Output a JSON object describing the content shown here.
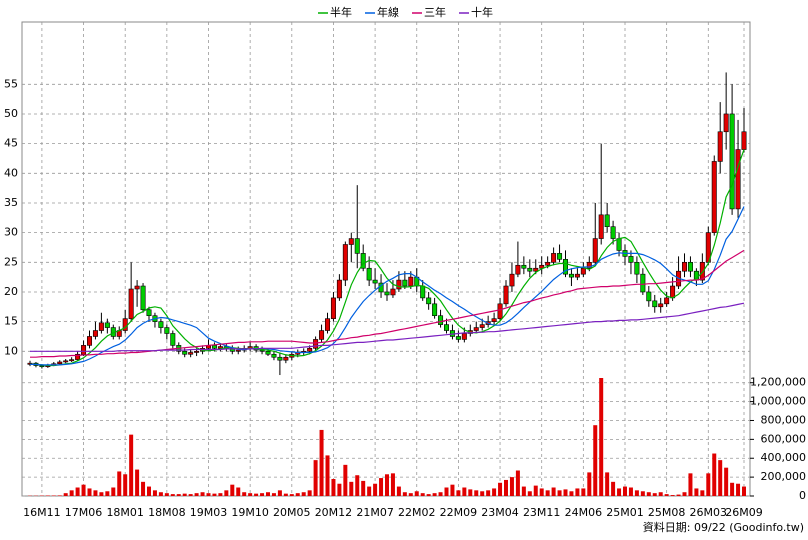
{
  "chart_data": {
    "type": "candlestick",
    "categories": [
      null,
      null,
      "16M11",
      null,
      null,
      null,
      null,
      null,
      null,
      "17M06",
      null,
      null,
      null,
      null,
      null,
      null,
      "18M01",
      null,
      null,
      null,
      null,
      null,
      null,
      "18M08",
      null,
      null,
      null,
      null,
      null,
      null,
      "19M03",
      null,
      null,
      null,
      null,
      null,
      null,
      "19M10",
      null,
      null,
      null,
      null,
      null,
      null,
      "20M05",
      null,
      null,
      null,
      null,
      null,
      null,
      "20M12",
      null,
      null,
      null,
      null,
      null,
      null,
      "21M07",
      null,
      null,
      null,
      null,
      null,
      null,
      "22M02",
      null,
      null,
      null,
      null,
      null,
      null,
      "22M09",
      null,
      null,
      null,
      null,
      null,
      null,
      "23M04",
      null,
      null,
      null,
      null,
      null,
      null,
      "23M11",
      null,
      null,
      null,
      null,
      null,
      null,
      "24M06",
      null,
      null,
      null,
      null,
      null,
      null,
      "25M01",
      null,
      null,
      null,
      null,
      null,
      null,
      "25M08",
      null,
      null,
      null,
      null,
      null,
      null,
      "26M03",
      null,
      null,
      null,
      null,
      null,
      "26M09"
    ],
    "open": [
      7.8,
      8.0,
      7.6,
      7.4,
      7.6,
      7.9,
      8.2,
      8.4,
      8.6,
      9.5,
      11.0,
      12.5,
      13.5,
      14.8,
      14.0,
      12.5,
      13.5,
      15.5,
      20.5,
      21.0,
      17.0,
      16.0,
      15.0,
      14.0,
      13.0,
      11.0,
      10.0,
      9.5,
      9.8,
      10.0,
      10.5,
      11.0,
      10.5,
      10.8,
      10.5,
      10.0,
      10.2,
      10.5,
      10.8,
      10.2,
      10.0,
      9.5,
      9.0,
      8.5,
      9.0,
      9.5,
      9.8,
      10.0,
      10.5,
      12.0,
      13.5,
      15.5,
      19.0,
      22.0,
      28.0,
      29.0,
      26.5,
      24.0,
      22.0,
      21.5,
      20.0,
      19.5,
      20.5,
      22.0,
      21.0,
      22.5,
      21.0,
      19.0,
      18.0,
      16.0,
      14.5,
      13.5,
      12.5,
      12.0,
      13.0,
      13.5,
      14.0,
      14.5,
      15.0,
      15.5,
      18.0,
      21.0,
      23.0,
      24.5,
      24.0,
      23.5,
      24.0,
      24.5,
      25.0,
      26.5,
      25.5,
      23.0,
      22.5,
      23.0,
      24.0,
      25.0,
      29.0,
      33.0,
      31.0,
      29.0,
      27.0,
      26.0,
      25.0,
      23.0,
      20.0,
      18.5,
      17.5,
      18.0,
      19.0,
      21.0,
      23.5,
      25.0,
      23.5,
      22.0,
      25.0,
      30.0,
      42.0,
      47.0,
      50.0,
      34.0,
      44.0
    ],
    "high": [
      8.4,
      8.2,
      7.8,
      7.9,
      8.2,
      8.5,
      8.7,
      9.0,
      10.0,
      11.8,
      13.5,
      15.0,
      16.5,
      15.5,
      14.5,
      14.2,
      17.0,
      25.0,
      22.0,
      21.5,
      17.5,
      16.5,
      15.5,
      14.5,
      13.5,
      11.5,
      10.5,
      10.3,
      10.5,
      11.0,
      12.0,
      11.5,
      11.3,
      11.2,
      11.0,
      10.8,
      11.0,
      11.5,
      11.2,
      10.8,
      10.5,
      10.0,
      9.8,
      9.5,
      10.0,
      10.3,
      10.5,
      11.0,
      12.5,
      14.5,
      16.5,
      20.0,
      23.0,
      28.5,
      30.0,
      38.0,
      28.0,
      26.0,
      24.0,
      23.0,
      21.5,
      22.0,
      23.5,
      23.5,
      23.5,
      24.0,
      22.0,
      20.0,
      19.0,
      17.0,
      15.5,
      14.5,
      13.5,
      14.0,
      14.5,
      15.0,
      15.5,
      16.0,
      16.5,
      19.0,
      22.0,
      25.0,
      28.5,
      26.0,
      25.5,
      25.5,
      26.0,
      26.0,
      27.5,
      28.0,
      27.0,
      24.0,
      24.0,
      25.0,
      26.0,
      35.0,
      45.0,
      35.0,
      32.0,
      30.0,
      28.0,
      27.0,
      26.0,
      24.0,
      21.0,
      19.5,
      19.0,
      20.0,
      22.5,
      26.0,
      26.5,
      26.0,
      24.0,
      26.5,
      31.0,
      43.0,
      52.0,
      57.0,
      55.0,
      49.0,
      51.0
    ],
    "low": [
      7.5,
      7.3,
      7.1,
      7.2,
      7.5,
      7.7,
      8.0,
      8.2,
      8.4,
      9.2,
      10.5,
      12.0,
      13.0,
      13.0,
      12.0,
      12.0,
      13.0,
      15.0,
      17.5,
      16.5,
      15.0,
      14.0,
      13.0,
      12.0,
      10.5,
      9.5,
      9.0,
      9.0,
      9.2,
      9.5,
      10.0,
      10.0,
      10.0,
      10.0,
      9.5,
      9.5,
      9.8,
      10.0,
      9.8,
      9.5,
      9.2,
      8.5,
      6.0,
      8.0,
      8.5,
      9.0,
      9.3,
      9.5,
      10.0,
      11.5,
      13.0,
      15.0,
      18.5,
      21.0,
      25.0,
      24.0,
      23.5,
      21.0,
      20.5,
      19.0,
      18.5,
      19.0,
      20.0,
      20.5,
      20.5,
      20.0,
      18.5,
      17.0,
      15.5,
      14.0,
      13.0,
      12.0,
      11.5,
      11.5,
      12.5,
      13.0,
      13.5,
      14.0,
      14.5,
      15.0,
      17.5,
      20.0,
      22.5,
      23.0,
      22.5,
      23.0,
      23.0,
      24.0,
      24.5,
      25.0,
      22.5,
      21.0,
      22.0,
      22.5,
      23.5,
      24.5,
      28.0,
      30.0,
      28.0,
      26.0,
      24.5,
      23.0,
      21.5,
      19.5,
      17.5,
      16.5,
      16.5,
      17.5,
      18.5,
      20.5,
      22.5,
      22.5,
      21.0,
      21.5,
      24.5,
      29.5,
      40.0,
      44.0,
      33.0,
      32.5,
      43.5
    ],
    "close": [
      8.0,
      7.6,
      7.4,
      7.6,
      7.9,
      8.2,
      8.4,
      8.6,
      9.5,
      11.0,
      12.5,
      13.5,
      14.8,
      14.0,
      12.5,
      13.5,
      15.5,
      20.5,
      21.0,
      17.0,
      16.0,
      15.0,
      14.0,
      13.0,
      11.0,
      10.0,
      9.5,
      9.8,
      10.0,
      10.5,
      11.0,
      10.5,
      10.8,
      10.5,
      10.0,
      10.2,
      10.5,
      10.8,
      10.2,
      10.0,
      9.5,
      9.0,
      8.5,
      9.0,
      9.5,
      9.8,
      10.0,
      10.5,
      12.0,
      13.5,
      15.5,
      19.0,
      22.0,
      28.0,
      29.0,
      26.5,
      24.0,
      22.0,
      21.5,
      20.0,
      19.5,
      20.5,
      22.0,
      21.0,
      22.5,
      21.0,
      19.0,
      18.0,
      16.0,
      14.5,
      13.5,
      12.5,
      12.0,
      13.0,
      13.5,
      14.0,
      14.5,
      15.0,
      15.5,
      18.0,
      21.0,
      23.0,
      24.5,
      24.0,
      23.5,
      24.0,
      24.5,
      25.0,
      26.5,
      25.5,
      23.0,
      22.5,
      23.0,
      24.0,
      25.0,
      29.0,
      33.0,
      31.0,
      29.0,
      27.0,
      26.0,
      25.0,
      23.0,
      20.0,
      18.5,
      17.5,
      18.0,
      19.0,
      21.0,
      23.5,
      25.0,
      23.5,
      22.0,
      25.0,
      30.0,
      42.0,
      47.0,
      50.0,
      34.0,
      44.0,
      47.0
    ],
    "up_color": "#e00000",
    "down_color": "#00cc00",
    "series": [
      {
        "name": "半年",
        "color": "#00b000",
        "values": [
          7.8,
          7.8,
          7.7,
          7.6,
          7.6,
          7.7,
          7.9,
          8.0,
          8.4,
          8.9,
          9.7,
          10.6,
          11.7,
          12.6,
          13.1,
          13.5,
          14.0,
          15.1,
          16.2,
          16.7,
          17.3,
          17.5,
          17.3,
          16.0,
          14.3,
          13.2,
          12.1,
          11.2,
          10.6,
          10.1,
          10.1,
          10.2,
          10.4,
          10.6,
          10.6,
          10.5,
          10.4,
          10.5,
          10.4,
          10.3,
          10.2,
          10.0,
          9.7,
          9.4,
          9.3,
          9.2,
          9.3,
          9.6,
          10.1,
          10.9,
          11.9,
          13.4,
          15.4,
          18.3,
          21.2,
          23.3,
          24.8,
          25.3,
          25.2,
          23.8,
          22.3,
          21.3,
          20.9,
          20.8,
          20.9,
          21.1,
          21.0,
          20.6,
          19.6,
          18.5,
          17.0,
          15.6,
          14.4,
          13.6,
          13.2,
          13.1,
          13.3,
          13.7,
          14.3,
          15.1,
          16.3,
          17.8,
          19.5,
          21.0,
          22.3,
          23.3,
          23.9,
          24.3,
          24.6,
          24.8,
          24.8,
          24.5,
          24.3,
          24.1,
          23.8,
          24.4,
          26.1,
          27.5,
          28.5,
          29.0,
          29.2,
          28.5,
          26.8,
          25.0,
          23.3,
          21.7,
          20.3,
          19.3,
          19.0,
          19.6,
          20.7,
          21.7,
          22.3,
          23.3,
          24.8,
          27.9,
          31.6,
          36.0,
          38.0,
          41.2,
          44.0
        ]
      },
      {
        "name": "年線",
        "color": "#0060e0",
        "values": [
          7.8,
          7.8,
          7.7,
          7.7,
          7.7,
          7.7,
          7.8,
          7.9,
          8.1,
          8.3,
          8.7,
          9.2,
          9.8,
          10.3,
          10.8,
          11.2,
          11.9,
          12.9,
          14.0,
          14.7,
          15.2,
          15.5,
          15.7,
          15.6,
          15.3,
          15.0,
          14.7,
          14.4,
          14.0,
          13.1,
          12.2,
          11.7,
          11.3,
          10.9,
          10.6,
          10.3,
          10.3,
          10.4,
          10.4,
          10.5,
          10.4,
          10.3,
          10.1,
          10.0,
          9.9,
          9.8,
          9.8,
          9.8,
          9.9,
          10.2,
          10.6,
          11.3,
          12.4,
          14.0,
          15.7,
          17.1,
          18.4,
          19.4,
          20.3,
          21.1,
          21.8,
          22.3,
          22.9,
          23.1,
          23.1,
          22.5,
          21.7,
          21.0,
          20.3,
          19.7,
          19.0,
          18.4,
          17.7,
          17.1,
          16.4,
          15.8,
          15.2,
          14.7,
          14.4,
          14.4,
          14.8,
          15.5,
          16.4,
          17.4,
          18.3,
          19.2,
          20.1,
          21.1,
          22.1,
          22.9,
          23.6,
          23.9,
          24.1,
          24.2,
          24.2,
          24.6,
          25.5,
          26.0,
          26.4,
          26.6,
          26.5,
          26.5,
          26.5,
          26.3,
          25.9,
          25.4,
          24.8,
          23.9,
          22.9,
          22.3,
          22.0,
          21.7,
          21.3,
          21.3,
          21.9,
          23.8,
          26.2,
          28.9,
          30.2,
          32.3,
          34.4
        ]
      },
      {
        "name": "三年",
        "color": "#d0006a",
        "values": [
          9.0,
          9.0,
          9.1,
          9.1,
          9.1,
          9.2,
          9.2,
          9.3,
          9.3,
          9.4,
          9.4,
          9.5,
          9.5,
          9.6,
          9.6,
          9.7,
          9.7,
          9.8,
          9.8,
          9.9,
          10.0,
          10.1,
          10.2,
          10.3,
          10.4,
          10.5,
          10.6,
          10.7,
          10.8,
          10.9,
          11.0,
          11.1,
          11.2,
          11.3,
          11.4,
          11.5,
          11.5,
          11.6,
          11.6,
          11.6,
          11.7,
          11.7,
          11.7,
          11.7,
          11.7,
          11.6,
          11.5,
          11.4,
          11.4,
          11.5,
          11.6,
          11.8,
          12.0,
          12.1,
          12.3,
          12.4,
          12.6,
          12.7,
          12.9,
          13.0,
          13.2,
          13.4,
          13.6,
          13.8,
          14.0,
          14.2,
          14.4,
          14.6,
          14.8,
          15.0,
          15.2,
          15.4,
          15.6,
          15.8,
          16.0,
          16.2,
          16.4,
          16.6,
          16.8,
          17.0,
          17.3,
          17.6,
          17.9,
          18.2,
          18.4,
          18.7,
          19.0,
          19.2,
          19.5,
          19.7,
          20.0,
          20.2,
          20.5,
          20.6,
          20.7,
          20.8,
          20.9,
          20.9,
          21.0,
          21.0,
          21.1,
          21.2,
          21.3,
          21.3,
          21.4,
          21.4,
          21.5,
          21.6,
          21.7,
          21.8,
          21.9,
          22.0,
          22.0,
          22.2,
          22.8,
          23.6,
          24.4,
          25.2,
          25.8,
          26.4,
          27.0
        ]
      },
      {
        "name": "十年",
        "color": "#7a20c0",
        "values": [
          10.0,
          10.0,
          10.0,
          10.0,
          10.0,
          10.0,
          10.0,
          10.0,
          10.0,
          10.0,
          10.0,
          10.0,
          10.0,
          10.0,
          10.0,
          10.1,
          10.1,
          10.1,
          10.1,
          10.1,
          10.1,
          10.1,
          10.2,
          10.2,
          10.2,
          10.2,
          10.2,
          10.3,
          10.3,
          10.3,
          10.3,
          10.3,
          10.3,
          10.4,
          10.4,
          10.4,
          10.4,
          10.4,
          10.4,
          10.5,
          10.5,
          10.5,
          10.5,
          10.5,
          10.5,
          10.6,
          10.7,
          10.8,
          10.9,
          11.0,
          11.0,
          11.1,
          11.2,
          11.3,
          11.4,
          11.5,
          11.5,
          11.6,
          11.7,
          11.8,
          11.9,
          11.9,
          12.0,
          12.1,
          12.2,
          12.3,
          12.4,
          12.5,
          12.6,
          12.7,
          12.8,
          12.9,
          13.0,
          13.1,
          13.1,
          13.2,
          13.2,
          13.3,
          13.3,
          13.4,
          13.5,
          13.6,
          13.7,
          13.8,
          13.9,
          14.0,
          14.1,
          14.2,
          14.3,
          14.4,
          14.5,
          14.6,
          14.7,
          14.8,
          14.9,
          15.0,
          15.0,
          15.1,
          15.1,
          15.2,
          15.2,
          15.3,
          15.3,
          15.4,
          15.5,
          15.6,
          15.7,
          15.8,
          15.9,
          16.0,
          16.2,
          16.4,
          16.6,
          16.8,
          17.0,
          17.2,
          17.4,
          17.5,
          17.7,
          17.9,
          18.1
        ]
      }
    ],
    "ylim": [
      5.5,
      65.5
    ],
    "yticks": [
      10,
      15,
      20,
      25,
      30,
      35,
      40,
      45,
      50,
      55
    ],
    "volume": {
      "color": "#e00000",
      "values": [
        3000,
        3000,
        4000,
        5000,
        5000,
        6000,
        30000,
        60000,
        90000,
        120000,
        80000,
        60000,
        40000,
        50000,
        90000,
        260000,
        230000,
        650000,
        280000,
        150000,
        100000,
        60000,
        40000,
        30000,
        20000,
        20000,
        25000,
        20000,
        30000,
        40000,
        30000,
        25000,
        30000,
        60000,
        120000,
        90000,
        40000,
        30000,
        25000,
        30000,
        40000,
        30000,
        60000,
        25000,
        20000,
        30000,
        40000,
        60000,
        380000,
        700000,
        430000,
        180000,
        130000,
        330000,
        150000,
        220000,
        160000,
        100000,
        130000,
        190000,
        230000,
        240000,
        100000,
        40000,
        30000,
        50000,
        30000,
        20000,
        30000,
        40000,
        90000,
        120000,
        60000,
        90000,
        70000,
        60000,
        50000,
        60000,
        80000,
        140000,
        170000,
        200000,
        270000,
        100000,
        50000,
        110000,
        80000,
        60000,
        90000,
        60000,
        70000,
        50000,
        80000,
        80000,
        250000,
        750000,
        1250000,
        250000,
        150000,
        80000,
        100000,
        90000,
        60000,
        50000,
        40000,
        30000,
        40000,
        20000,
        10000,
        15000,
        40000,
        240000,
        80000,
        60000,
        240000,
        450000,
        380000,
        300000,
        140000,
        130000,
        100000
      ],
      "ylim": [
        0,
        1250000
      ],
      "yticks": [
        0,
        {
          "value": 200000,
          "label": "200,000"
        },
        {
          "value": 400000,
          "label": "400,000"
        },
        {
          "value": 600000,
          "label": "600,000"
        },
        {
          "value": 800000,
          "label": "800,000"
        },
        {
          "value": 1000000,
          "label": "1,000,000"
        },
        {
          "value": 1200000,
          "label": "1,200,000"
        }
      ]
    },
    "grid": true,
    "source": "資料日期: 09/22 (Goodinfo.tw)"
  }
}
